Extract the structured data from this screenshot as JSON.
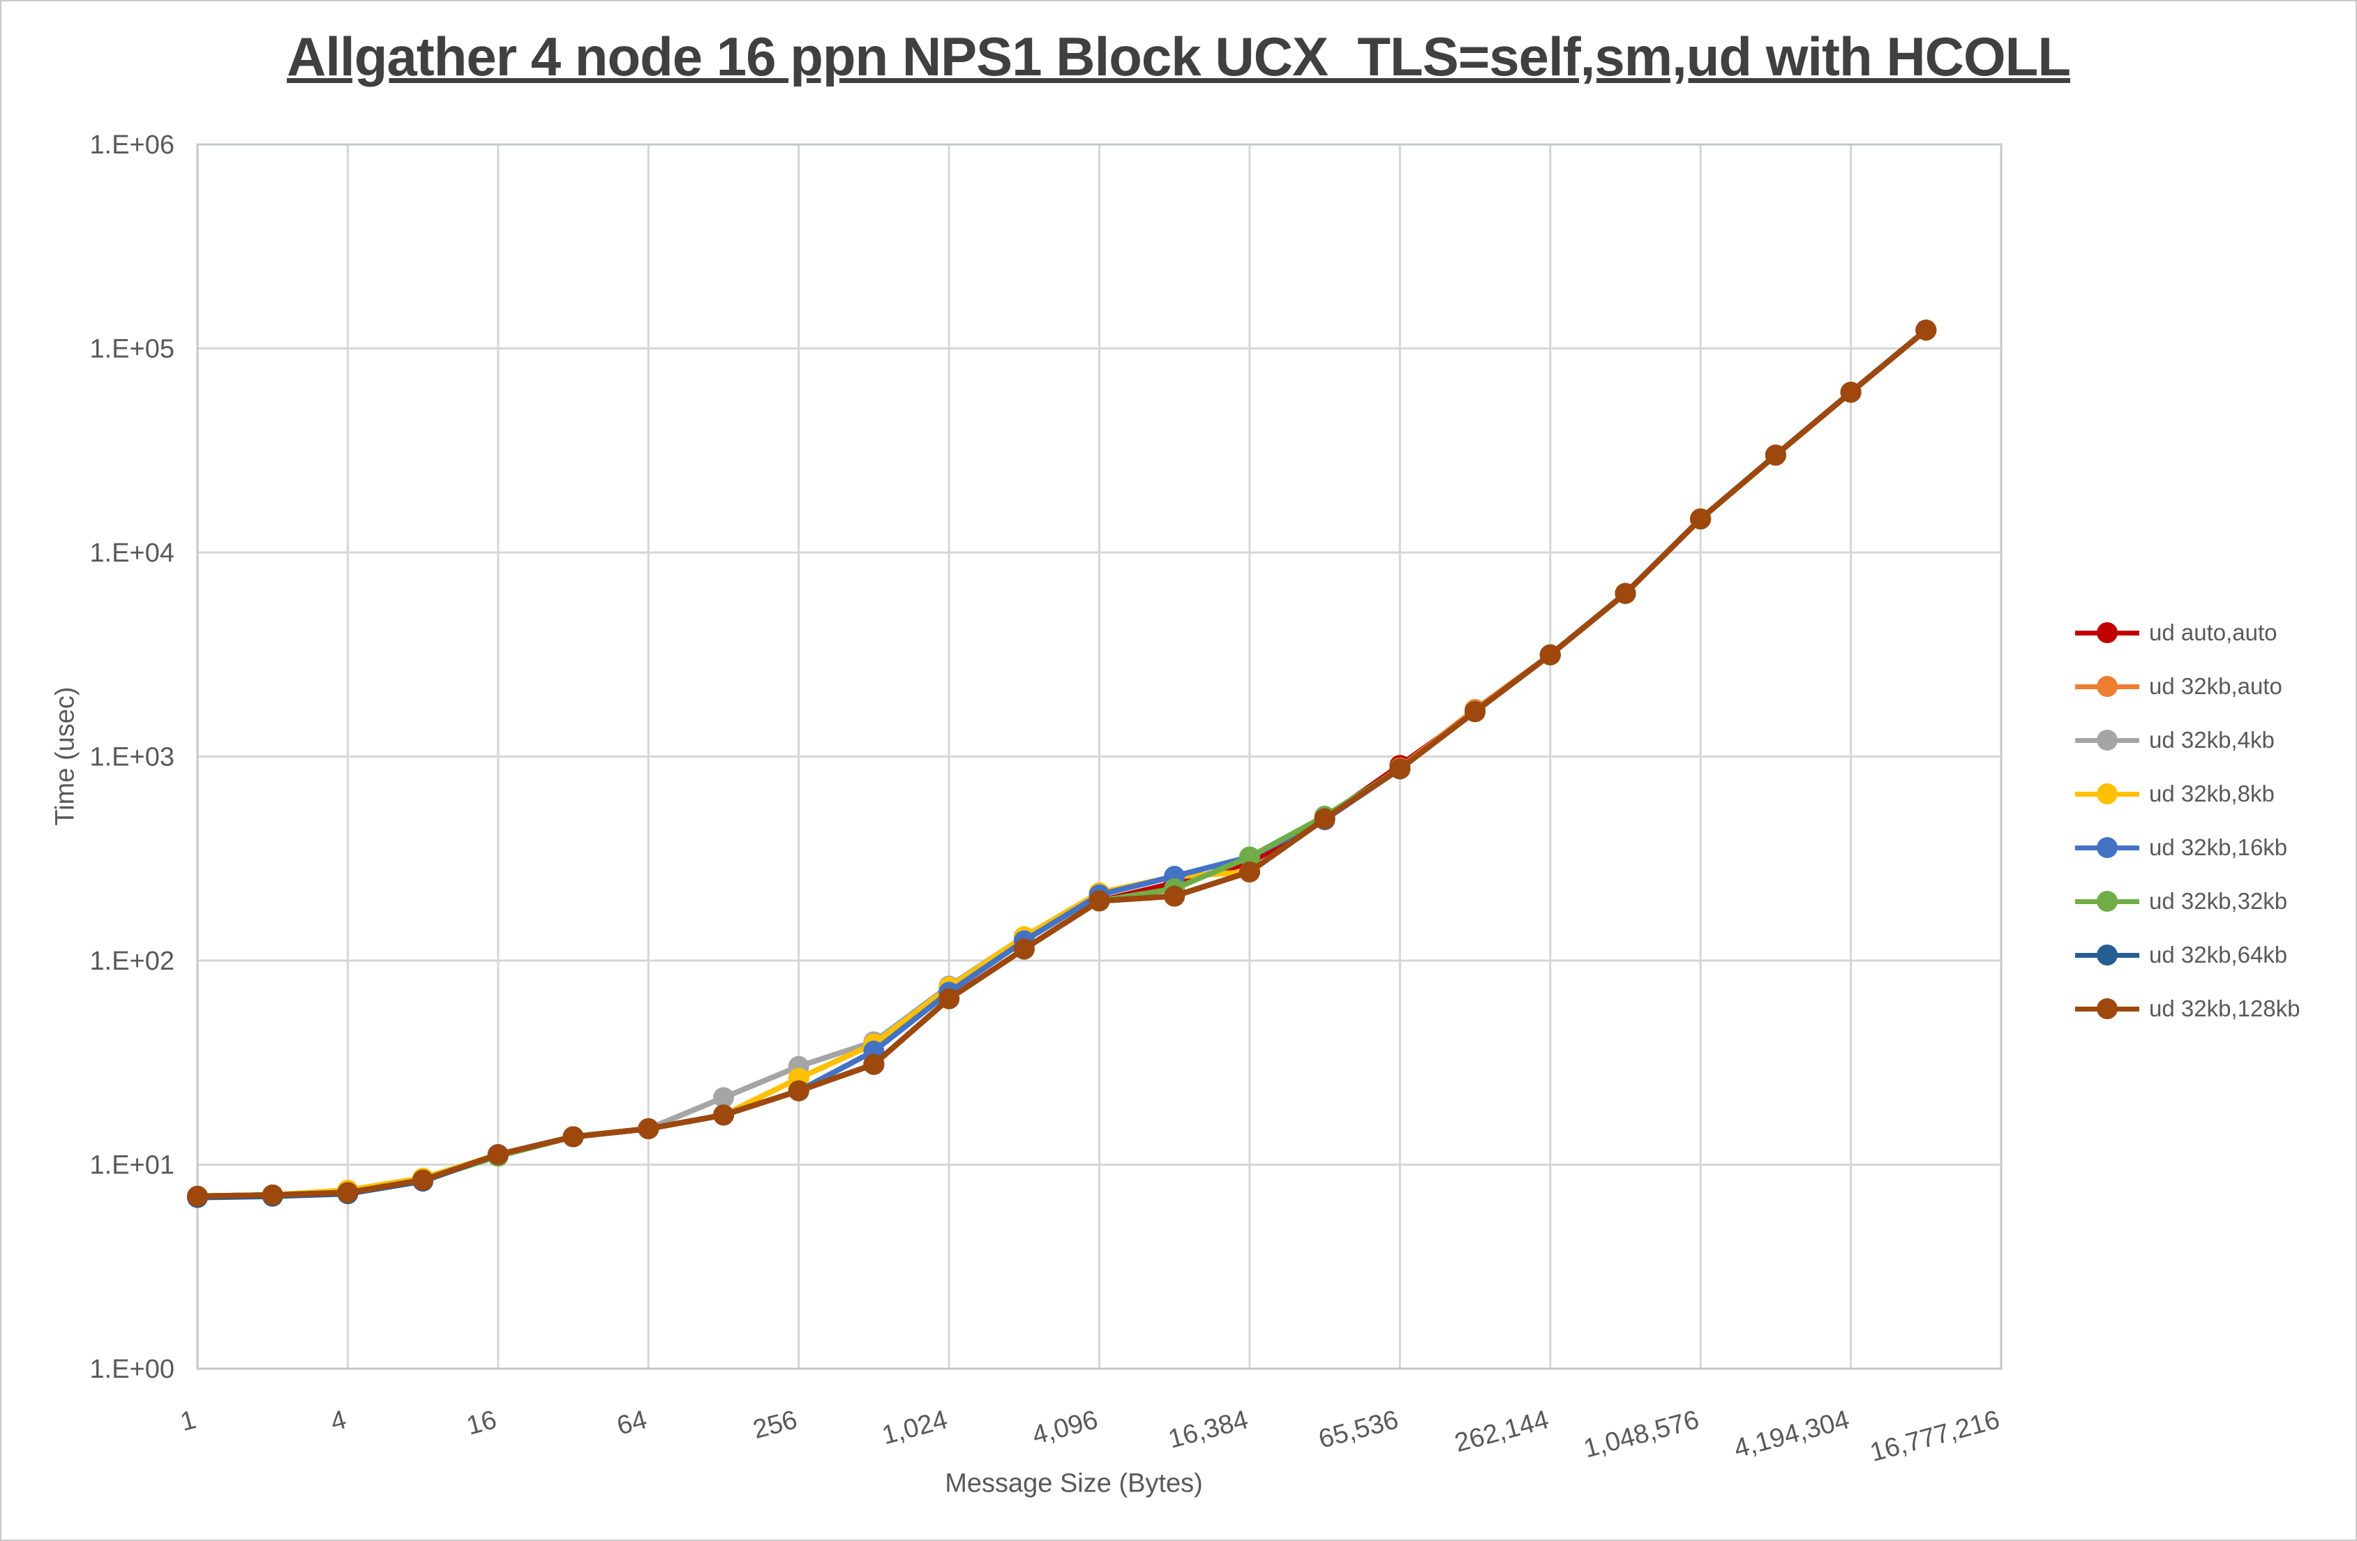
{
  "chart_data": {
    "type": "line",
    "title": "Allgather 4 node 16 ppn NPS1 Block UCX_TLS=self,sm,ud with HCOLL",
    "xlabel": "Message Size (Bytes)",
    "ylabel": "Time (usec)",
    "x_scale": "log2",
    "y_scale": "log10",
    "ylim": [
      1,
      1000000
    ],
    "grid": true,
    "legend_position": "right",
    "y_ticks": [
      "1.E+00",
      "1.E+01",
      "1.E+02",
      "1.E+03",
      "1.E+04",
      "1.E+05",
      "1.E+06"
    ],
    "x_ticks": [
      {
        "value": 1,
        "label": "1"
      },
      {
        "value": 4,
        "label": "4"
      },
      {
        "value": 16,
        "label": "16"
      },
      {
        "value": 64,
        "label": "64"
      },
      {
        "value": 256,
        "label": "256"
      },
      {
        "value": 1024,
        "label": "1,024"
      },
      {
        "value": 4096,
        "label": "4,096"
      },
      {
        "value": 16384,
        "label": "16,384"
      },
      {
        "value": 65536,
        "label": "65,536"
      },
      {
        "value": 262144,
        "label": "262,144"
      },
      {
        "value": 1048576,
        "label": "1,048,576"
      },
      {
        "value": 4194304,
        "label": "4,194,304"
      },
      {
        "value": 16777216,
        "label": "16,777,216"
      }
    ],
    "x": [
      1,
      2,
      4,
      8,
      16,
      32,
      64,
      128,
      256,
      512,
      1024,
      2048,
      4096,
      8192,
      16384,
      32768,
      65536,
      131072,
      262144,
      524288,
      1048576,
      2097152,
      4194304,
      8388608
    ],
    "series": [
      {
        "name": "ud auto,auto",
        "color": "#C00000",
        "values": [
          7.0,
          7.1,
          7.3,
          8.4,
          11.2,
          13.7,
          15.0,
          17.5,
          23,
          31,
          65,
          114,
          196,
          240,
          300,
          500,
          905,
          1660,
          3150,
          6300,
          14600,
          30000,
          61000,
          123000
        ]
      },
      {
        "name": "ud 32kb,auto",
        "color": "#ED7D31",
        "values": [
          7.0,
          7.1,
          7.3,
          8.4,
          11.2,
          13.7,
          15.0,
          17.5,
          23,
          31,
          65,
          114,
          196,
          207,
          272,
          495,
          880,
          1700,
          3150,
          6300,
          14600,
          30000,
          61000,
          123000
        ]
      },
      {
        "name": "ud 32kb,4kb",
        "color": "#A5A5A5",
        "values": [
          7.0,
          7.1,
          7.3,
          8.4,
          11.2,
          13.7,
          15.0,
          21.3,
          30.3,
          40,
          75,
          131,
          215,
          258,
          272,
          495,
          870,
          1660,
          3150,
          6300,
          14600,
          30000,
          61000,
          123000
        ]
      },
      {
        "name": "ud 32kb,8kb",
        "color": "#FFC000",
        "values": [
          7.0,
          7.1,
          7.5,
          8.6,
          11.2,
          13.7,
          15.0,
          17.5,
          26.5,
          39,
          74,
          131,
          215,
          258,
          272,
          495,
          870,
          1660,
          3150,
          6300,
          14600,
          30000,
          61000,
          123000
        ]
      },
      {
        "name": "ud 32kb,16kb",
        "color": "#4472C4",
        "values": [
          7.0,
          7.1,
          7.3,
          8.4,
          11.2,
          13.7,
          15.0,
          17.5,
          23,
          36,
          70,
          125,
          210,
          259,
          322,
          490,
          870,
          1660,
          3150,
          6300,
          14600,
          30000,
          61000,
          123000
        ]
      },
      {
        "name": "ud 32kb,32kb",
        "color": "#70AD47",
        "values": [
          7.0,
          7.1,
          7.3,
          8.4,
          11.0,
          13.7,
          15.0,
          17.5,
          23,
          31,
          65,
          114,
          196,
          225,
          322,
          510,
          870,
          1660,
          3150,
          6300,
          14600,
          30000,
          61000,
          123000
        ]
      },
      {
        "name": "ud 32kb,64kb",
        "color": "#255E91",
        "values": [
          6.9,
          7.0,
          7.2,
          8.3,
          11.2,
          13.7,
          15.0,
          17.5,
          23,
          31,
          65,
          114,
          196,
          207,
          272,
          495,
          870,
          1660,
          3150,
          6300,
          14600,
          30000,
          61000,
          123000
        ]
      },
      {
        "name": "ud 32kb,128kb",
        "color": "#9E480E",
        "values": [
          7.0,
          7.1,
          7.3,
          8.4,
          11.2,
          13.7,
          15.0,
          17.5,
          23,
          31,
          65,
          114,
          196,
          207,
          272,
          495,
          870,
          1660,
          3150,
          6300,
          14600,
          30000,
          61000,
          123000
        ]
      }
    ]
  },
  "style": {
    "grid_color": "#D6D6D6",
    "border_color": "#C3C7CA",
    "tick_text_color": "#595959",
    "title_color": "#404040"
  }
}
